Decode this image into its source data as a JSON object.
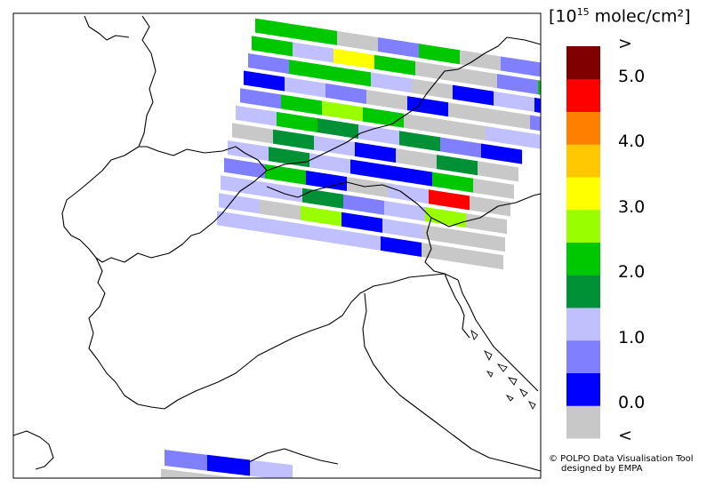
{
  "units": {
    "prefix": "[10",
    "exponent": "15",
    "suffix": " molec/cm²]"
  },
  "legend": {
    "bins": [
      {
        "color": "#c8c8c8"
      },
      {
        "color": "#0000ff"
      },
      {
        "color": "#8080ff"
      },
      {
        "color": "#c0c0ff"
      },
      {
        "color": "#009036"
      },
      {
        "color": "#00c800"
      },
      {
        "color": "#99ff00"
      },
      {
        "color": "#ffff00"
      },
      {
        "color": "#ffc800"
      },
      {
        "color": "#ff8000"
      },
      {
        "color": "#ff0000"
      },
      {
        "color": "#800000"
      }
    ],
    "labels": [
      {
        "text": "<",
        "at": 0
      },
      {
        "text": "0.0",
        "at": 1
      },
      {
        "text": "1.0",
        "at": 3
      },
      {
        "text": "2.0",
        "at": 5
      },
      {
        "text": "3.0",
        "at": 7
      },
      {
        "text": "4.0",
        "at": 9
      },
      {
        "text": "5.0",
        "at": 11
      },
      {
        "text": ">",
        "at": 12
      }
    ]
  },
  "credit": {
    "line1": "© POLPO Data Visualisation Tool",
    "line2": "designed by EMPA"
  },
  "swath_rows": [
    [
      "green",
      "green",
      "grey",
      "lblue",
      "green",
      "grey",
      "lblue",
      "lblue",
      "green"
    ],
    [
      "green",
      "lavender",
      "yellow",
      "green",
      "grey",
      "grey",
      "lblue",
      "green",
      "green"
    ],
    [
      "lblue",
      "green",
      "green",
      "lavender",
      "grey",
      "blue",
      "lavender",
      "blue"
    ],
    [
      "blue",
      "lavender",
      "lblue",
      "grey",
      "blue",
      "grey",
      "grey",
      "lblue"
    ],
    [
      "lblue",
      "green",
      "lime",
      "green",
      "grey",
      "grey",
      "lavender",
      "lavender"
    ],
    [
      "lavender",
      "green",
      "dgreen",
      "lavender",
      "dgreen",
      "lblue",
      "blue"
    ],
    [
      "grey",
      "dgreen",
      "lavender",
      "blue",
      "grey",
      "dgreen",
      "grey"
    ],
    [
      "lavender",
      "dgreen",
      "lavender",
      "blue",
      "blue",
      "green",
      "grey"
    ],
    [
      "lblue",
      "green",
      "blue",
      "grey",
      "lavender",
      "red",
      "grey"
    ],
    [
      "lavender",
      "lavender",
      "dgreen",
      "lblue",
      "lavender",
      "lime",
      "grey"
    ],
    [
      "lavender",
      "grey",
      "lime",
      "blue",
      "lavender",
      "grey",
      "grey"
    ],
    [
      "lavender",
      "lavender",
      "lavender",
      "lavender",
      "blue",
      "grey",
      "grey"
    ]
  ],
  "bottom_rows": [
    [
      "lblue",
      "blue",
      "lavender"
    ],
    [
      "grey",
      "grey",
      "grey"
    ]
  ]
}
